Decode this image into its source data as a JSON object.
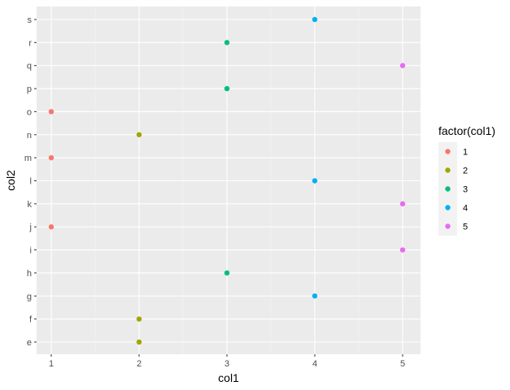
{
  "chart_data": {
    "type": "scatter",
    "xlabel": "col1",
    "ylabel": "col2",
    "x_ticks": [
      1,
      2,
      3,
      4,
      5
    ],
    "y_categories": [
      "e",
      "f",
      "g",
      "h",
      "i",
      "j",
      "k",
      "l",
      "m",
      "n",
      "o",
      "p",
      "q",
      "r",
      "s"
    ],
    "xlim": [
      0.85,
      5.2
    ],
    "grid": true,
    "legend": {
      "title": "factor(col1)",
      "placement": "right",
      "entries": [
        {
          "label": "1",
          "color": "#F8766D"
        },
        {
          "label": "2",
          "color": "#A3A500"
        },
        {
          "label": "3",
          "color": "#00BF7D"
        },
        {
          "label": "4",
          "color": "#00B0F6"
        },
        {
          "label": "5",
          "color": "#E76BF3"
        }
      ]
    },
    "points": [
      {
        "x": 1,
        "y": "o"
      },
      {
        "x": 1,
        "y": "m"
      },
      {
        "x": 1,
        "y": "j"
      },
      {
        "x": 2,
        "y": "n"
      },
      {
        "x": 2,
        "y": "f"
      },
      {
        "x": 2,
        "y": "e"
      },
      {
        "x": 3,
        "y": "r"
      },
      {
        "x": 3,
        "y": "p"
      },
      {
        "x": 3,
        "y": "h"
      },
      {
        "x": 4,
        "y": "s"
      },
      {
        "x": 4,
        "y": "l"
      },
      {
        "x": 4,
        "y": "g"
      },
      {
        "x": 5,
        "y": "q"
      },
      {
        "x": 5,
        "y": "k"
      },
      {
        "x": 5,
        "y": "i"
      }
    ]
  },
  "colors": {
    "panel_background": "#EBEBEB",
    "grid_major": "#FFFFFF",
    "legend_key_background": "#F2F2F2"
  }
}
